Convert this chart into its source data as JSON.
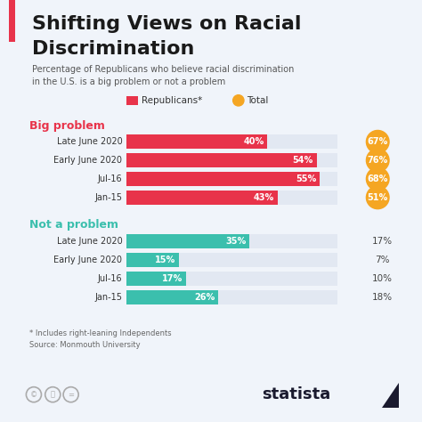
{
  "title_line1": "Shifting Views on Racial",
  "title_line2": "Discrimination",
  "subtitle": "Percentage of Republicans who believe racial discrimination\nin the U.S. is a big problem or not a problem",
  "footnote": "* Includes right-leaning Independents\nSource: Monmouth University",
  "legend_labels": [
    "Republicans*",
    "Total"
  ],
  "legend_colors": [
    "#E8334A",
    "#F5A623"
  ],
  "section1_label": "Big problem",
  "section2_label": "Not a problem",
  "section1_color": "#E8334A",
  "section2_color": "#3BBFAD",
  "bar_bg_color": "#E2E8F2",
  "bg_color": "#F0F4FA",
  "big_problem": {
    "labels": [
      "Late June 2020",
      "Early June 2020",
      "Jul-16",
      "Jan-15"
    ],
    "republicans": [
      40,
      54,
      55,
      43
    ],
    "total": [
      67,
      76,
      68,
      51
    ]
  },
  "not_a_problem": {
    "labels": [
      "Late June 2020",
      "Early June 2020",
      "Jul-16",
      "Jan-15"
    ],
    "republicans": [
      35,
      15,
      17,
      26
    ],
    "total": [
      17,
      7,
      10,
      18
    ]
  },
  "title_color": "#1a1a1a",
  "subtitle_color": "#555555",
  "section1_text_color": "#E8334A",
  "section2_text_color": "#3BBFAD",
  "total_label_color": "#444444",
  "left_accent_color": "#E8334A",
  "statista_color": "#1a1a2e",
  "max_val": 60
}
